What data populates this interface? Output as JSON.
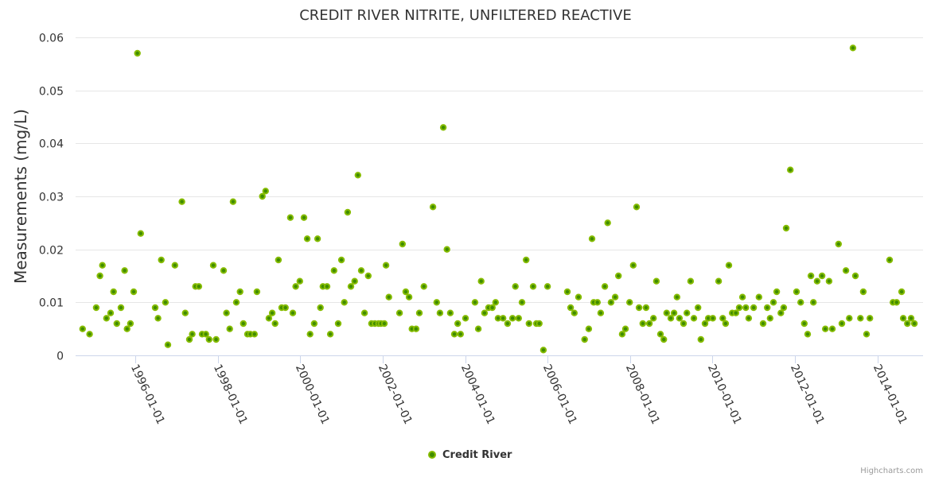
{
  "chart_data": {
    "type": "scatter",
    "title": "CREDIT RIVER NITRITE, UNFILTERED REACTIVE",
    "xlabel": "",
    "ylabel": "Measurements (mg/L)",
    "x_unit": "decimal year",
    "xlim": [
      1994.55,
      2015.11
    ],
    "ylim": [
      0,
      0.06
    ],
    "grid": true,
    "legend_position": "bottom-center",
    "y_ticks": [
      0,
      0.01,
      0.02,
      0.03,
      0.04,
      0.05,
      0.06
    ],
    "y_tick_labels": [
      "0",
      "0.01",
      "0.02",
      "0.03",
      "0.04",
      "0.05",
      "0.06"
    ],
    "x_ticks": [
      1996,
      1998,
      2000,
      2002,
      2004,
      2006,
      2008,
      2010,
      2012,
      2014
    ],
    "x_tick_labels": [
      "1996-01-01",
      "1998-01-01",
      "2000-01-01",
      "2002-01-01",
      "2004-01-01",
      "2006-01-01",
      "2008-01-01",
      "2010-01-01",
      "2012-01-01",
      "2014-01-01"
    ],
    "colors": {
      "marker_fill": "#3f8c00",
      "marker_stroke": "#86bc00"
    },
    "series": [
      {
        "name": "Credit River",
        "points": [
          [
            1994.72,
            0.005
          ],
          [
            1994.89,
            0.004
          ],
          [
            1995.05,
            0.009
          ],
          [
            1995.14,
            0.015
          ],
          [
            1995.2,
            0.017
          ],
          [
            1995.3,
            0.007
          ],
          [
            1995.4,
            0.008
          ],
          [
            1995.47,
            0.012
          ],
          [
            1995.55,
            0.006
          ],
          [
            1995.65,
            0.009
          ],
          [
            1995.74,
            0.016
          ],
          [
            1995.8,
            0.005
          ],
          [
            1995.88,
            0.006
          ],
          [
            1995.96,
            0.012
          ],
          [
            1996.05,
            0.057
          ],
          [
            1996.13,
            0.023
          ],
          [
            1996.48,
            0.009
          ],
          [
            1996.55,
            0.007
          ],
          [
            1996.63,
            0.018
          ],
          [
            1996.73,
            0.01
          ],
          [
            1996.79,
            0.002
          ],
          [
            1996.96,
            0.017
          ],
          [
            1997.13,
            0.029
          ],
          [
            1997.21,
            0.008
          ],
          [
            1997.31,
            0.003
          ],
          [
            1997.38,
            0.004
          ],
          [
            1997.46,
            0.013
          ],
          [
            1997.54,
            0.013
          ],
          [
            1997.62,
            0.004
          ],
          [
            1997.71,
            0.004
          ],
          [
            1997.79,
            0.003
          ],
          [
            1997.89,
            0.017
          ],
          [
            1997.96,
            0.003
          ],
          [
            1998.14,
            0.016
          ],
          [
            1998.21,
            0.008
          ],
          [
            1998.29,
            0.005
          ],
          [
            1998.37,
            0.029
          ],
          [
            1998.45,
            0.01
          ],
          [
            1998.54,
            0.012
          ],
          [
            1998.62,
            0.006
          ],
          [
            1998.72,
            0.004
          ],
          [
            1998.79,
            0.004
          ],
          [
            1998.89,
            0.004
          ],
          [
            1998.95,
            0.012
          ],
          [
            1999.08,
            0.03
          ],
          [
            1999.16,
            0.031
          ],
          [
            1999.24,
            0.007
          ],
          [
            1999.32,
            0.008
          ],
          [
            1999.39,
            0.006
          ],
          [
            1999.47,
            0.018
          ],
          [
            1999.55,
            0.009
          ],
          [
            1999.64,
            0.009
          ],
          [
            1999.76,
            0.026
          ],
          [
            1999.82,
            0.008
          ],
          [
            1999.89,
            0.013
          ],
          [
            1999.99,
            0.014
          ],
          [
            2000.09,
            0.026
          ],
          [
            2000.17,
            0.022
          ],
          [
            2000.24,
            0.004
          ],
          [
            2000.34,
            0.006
          ],
          [
            2000.42,
            0.022
          ],
          [
            2000.49,
            0.009
          ],
          [
            2000.55,
            0.013
          ],
          [
            2000.65,
            0.013
          ],
          [
            2000.73,
            0.004
          ],
          [
            2000.82,
            0.016
          ],
          [
            2000.92,
            0.006
          ],
          [
            2001.0,
            0.018
          ],
          [
            2001.07,
            0.01
          ],
          [
            2001.15,
            0.027
          ],
          [
            2001.23,
            0.013
          ],
          [
            2001.32,
            0.014
          ],
          [
            2001.4,
            0.034
          ],
          [
            2001.48,
            0.016
          ],
          [
            2001.56,
            0.008
          ],
          [
            2001.65,
            0.015
          ],
          [
            2001.73,
            0.006
          ],
          [
            2001.81,
            0.006
          ],
          [
            2001.9,
            0.006
          ],
          [
            2001.96,
            0.006
          ],
          [
            2002.04,
            0.006
          ],
          [
            2002.08,
            0.017
          ],
          [
            2002.15,
            0.011
          ],
          [
            2002.41,
            0.008
          ],
          [
            2002.48,
            0.021
          ],
          [
            2002.56,
            0.012
          ],
          [
            2002.64,
            0.011
          ],
          [
            2002.71,
            0.005
          ],
          [
            2002.81,
            0.005
          ],
          [
            2002.89,
            0.008
          ],
          [
            2003.0,
            0.013
          ],
          [
            2003.22,
            0.028
          ],
          [
            2003.31,
            0.01
          ],
          [
            2003.39,
            0.008
          ],
          [
            2003.47,
            0.043
          ],
          [
            2003.56,
            0.02
          ],
          [
            2003.64,
            0.008
          ],
          [
            2003.74,
            0.004
          ],
          [
            2003.82,
            0.006
          ],
          [
            2003.89,
            0.004
          ],
          [
            2004.01,
            0.007
          ],
          [
            2004.24,
            0.01
          ],
          [
            2004.32,
            0.005
          ],
          [
            2004.39,
            0.014
          ],
          [
            2004.47,
            0.008
          ],
          [
            2004.57,
            0.009
          ],
          [
            2004.66,
            0.009
          ],
          [
            2004.74,
            0.01
          ],
          [
            2004.8,
            0.007
          ],
          [
            2004.92,
            0.007
          ],
          [
            2005.03,
            0.006
          ],
          [
            2005.15,
            0.007
          ],
          [
            2005.22,
            0.013
          ],
          [
            2005.3,
            0.007
          ],
          [
            2005.38,
            0.01
          ],
          [
            2005.48,
            0.018
          ],
          [
            2005.55,
            0.006
          ],
          [
            2005.65,
            0.013
          ],
          [
            2005.73,
            0.006
          ],
          [
            2005.8,
            0.006
          ],
          [
            2005.9,
            0.001
          ],
          [
            2006.0,
            0.013
          ],
          [
            2006.48,
            0.012
          ],
          [
            2006.56,
            0.009
          ],
          [
            2006.65,
            0.008
          ],
          [
            2006.75,
            0.011
          ],
          [
            2006.9,
            0.003
          ],
          [
            2007.0,
            0.005
          ],
          [
            2007.08,
            0.022
          ],
          [
            2007.12,
            0.01
          ],
          [
            2007.21,
            0.01
          ],
          [
            2007.29,
            0.008
          ],
          [
            2007.39,
            0.013
          ],
          [
            2007.46,
            0.025
          ],
          [
            2007.54,
            0.01
          ],
          [
            2007.64,
            0.011
          ],
          [
            2007.72,
            0.015
          ],
          [
            2007.81,
            0.004
          ],
          [
            2007.89,
            0.005
          ],
          [
            2007.99,
            0.01
          ],
          [
            2008.08,
            0.017
          ],
          [
            2008.16,
            0.028
          ],
          [
            2008.22,
            0.009
          ],
          [
            2008.31,
            0.006
          ],
          [
            2008.39,
            0.009
          ],
          [
            2008.47,
            0.006
          ],
          [
            2008.57,
            0.007
          ],
          [
            2008.64,
            0.014
          ],
          [
            2008.74,
            0.004
          ],
          [
            2008.82,
            0.003
          ],
          [
            2008.89,
            0.008
          ],
          [
            2008.99,
            0.007
          ],
          [
            2009.07,
            0.008
          ],
          [
            2009.14,
            0.011
          ],
          [
            2009.2,
            0.007
          ],
          [
            2009.3,
            0.006
          ],
          [
            2009.38,
            0.008
          ],
          [
            2009.47,
            0.014
          ],
          [
            2009.55,
            0.007
          ],
          [
            2009.65,
            0.009
          ],
          [
            2009.72,
            0.003
          ],
          [
            2009.82,
            0.006
          ],
          [
            2009.9,
            0.007
          ],
          [
            2010.01,
            0.007
          ],
          [
            2010.15,
            0.014
          ],
          [
            2010.25,
            0.007
          ],
          [
            2010.32,
            0.006
          ],
          [
            2010.4,
            0.017
          ],
          [
            2010.48,
            0.008
          ],
          [
            2010.57,
            0.008
          ],
          [
            2010.65,
            0.009
          ],
          [
            2010.73,
            0.011
          ],
          [
            2010.81,
            0.009
          ],
          [
            2010.88,
            0.007
          ],
          [
            2011.0,
            0.009
          ],
          [
            2011.13,
            0.011
          ],
          [
            2011.23,
            0.006
          ],
          [
            2011.33,
            0.009
          ],
          [
            2011.4,
            0.007
          ],
          [
            2011.48,
            0.01
          ],
          [
            2011.56,
            0.012
          ],
          [
            2011.66,
            0.008
          ],
          [
            2011.73,
            0.009
          ],
          [
            2011.79,
            0.024
          ],
          [
            2011.89,
            0.035
          ],
          [
            2012.04,
            0.012
          ],
          [
            2012.14,
            0.01
          ],
          [
            2012.23,
            0.006
          ],
          [
            2012.31,
            0.004
          ],
          [
            2012.39,
            0.015
          ],
          [
            2012.45,
            0.01
          ],
          [
            2012.54,
            0.014
          ],
          [
            2012.66,
            0.015
          ],
          [
            2012.74,
            0.005
          ],
          [
            2012.83,
            0.014
          ],
          [
            2012.91,
            0.005
          ],
          [
            2013.06,
            0.021
          ],
          [
            2013.14,
            0.006
          ],
          [
            2013.24,
            0.016
          ],
          [
            2013.32,
            0.007
          ],
          [
            2013.41,
            0.058
          ],
          [
            2013.47,
            0.015
          ],
          [
            2013.59,
            0.007
          ],
          [
            2013.66,
            0.012
          ],
          [
            2013.74,
            0.004
          ],
          [
            2013.82,
            0.007
          ],
          [
            2014.3,
            0.018
          ],
          [
            2014.38,
            0.01
          ],
          [
            2014.47,
            0.01
          ],
          [
            2014.59,
            0.012
          ],
          [
            2014.63,
            0.007
          ],
          [
            2014.73,
            0.006
          ],
          [
            2014.82,
            0.007
          ],
          [
            2014.9,
            0.006
          ]
        ]
      }
    ]
  },
  "credits": "Highcharts.com"
}
